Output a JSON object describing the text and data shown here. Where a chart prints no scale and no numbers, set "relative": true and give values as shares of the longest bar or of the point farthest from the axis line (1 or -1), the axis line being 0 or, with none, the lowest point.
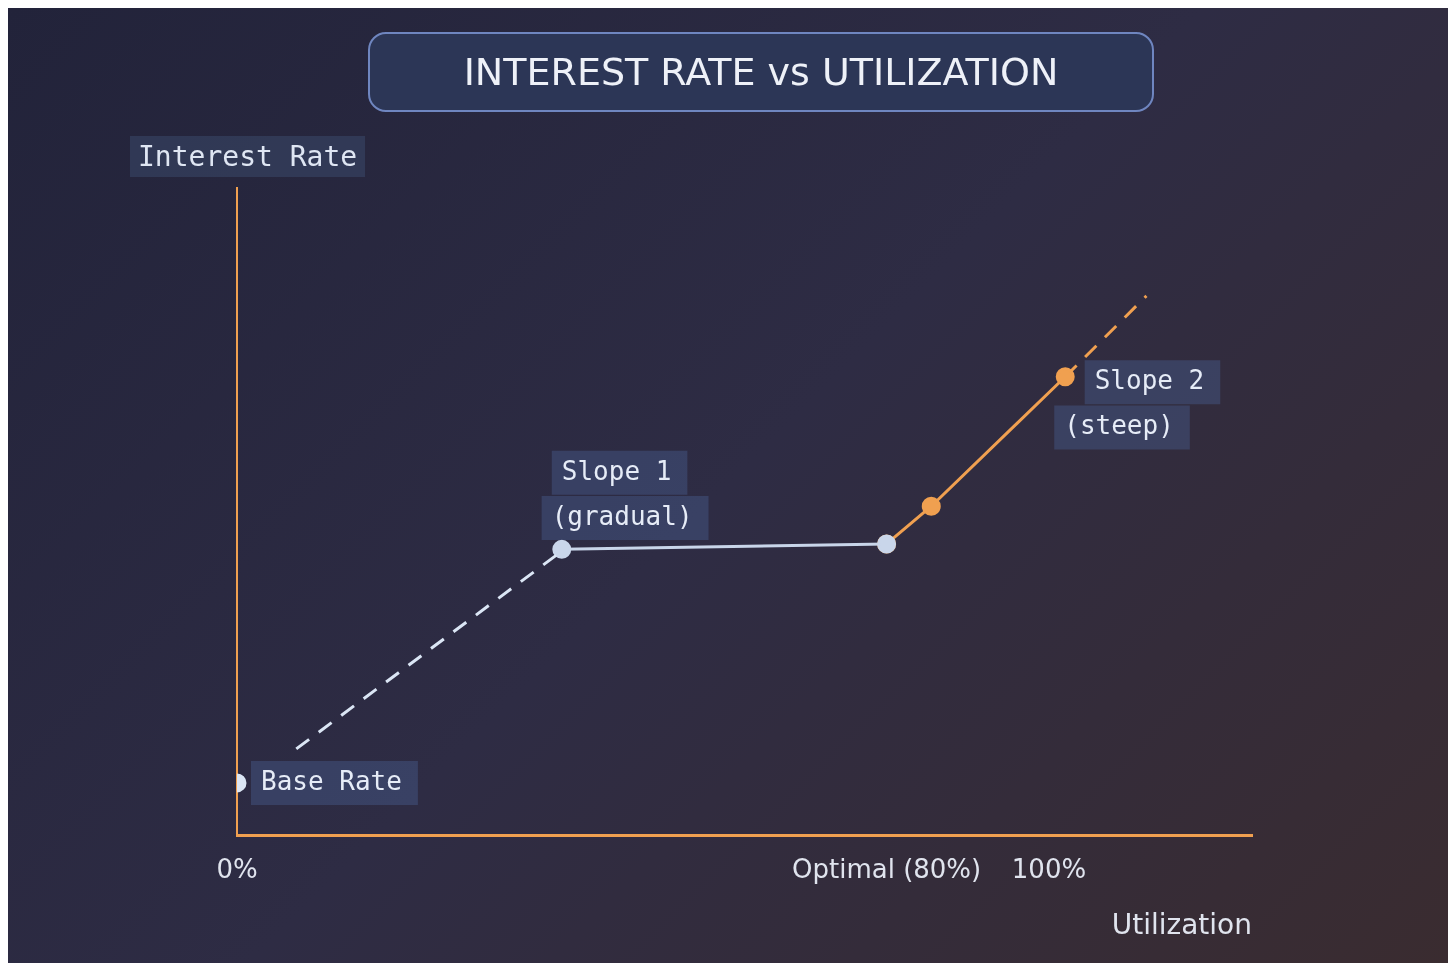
{
  "chart_data": {
    "type": "line",
    "title": "INTEREST RATE vs UTILIZATION",
    "xlabel": "Utilization",
    "ylabel": "Interest Rate",
    "relative": true,
    "grid": false,
    "legend": false,
    "xlim": [
      0,
      125
    ],
    "xticks": [
      {
        "value": 0,
        "label": "0%"
      },
      {
        "value": 80,
        "label": "Optimal (80%)"
      },
      {
        "value": 100,
        "label": "100%"
      }
    ],
    "series": [
      {
        "type": "scatter",
        "x": [
          0
        ],
        "values": [
          0.097
        ],
        "color": "#dbe6f5",
        "marker": "circle"
      },
      {
        "type": "line",
        "x": [
          7.3,
          39.4
        ],
        "values": [
          0.16,
          0.52
        ],
        "color": "#dbe6f5",
        "line_style": "dashed",
        "marker": "none"
      },
      {
        "type": "line",
        "x": [
          40,
          80
        ],
        "values": [
          0.53,
          0.54
        ],
        "color": "#c9d6ea",
        "line_style": "solid",
        "marker": "circle"
      },
      {
        "type": "line",
        "x": [
          80,
          85.5,
          102
        ],
        "values": [
          0.54,
          0.61,
          0.85
        ],
        "color": "#f0a050",
        "line_style": "solid",
        "marker": "circle"
      },
      {
        "type": "line",
        "x": [
          102,
          112
        ],
        "values": [
          0.85,
          1
        ],
        "color": "#f0a050",
        "line_style": "dashed",
        "marker": "none"
      }
    ],
    "annotations": [
      {
        "text": "Base Rate",
        "x": 0,
        "y": 0.097
      },
      "Slope 1",
      "(gradual)",
      "Slope 2",
      "(steep)"
    ]
  }
}
